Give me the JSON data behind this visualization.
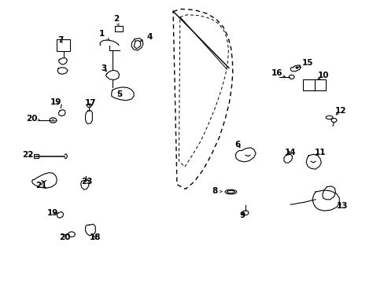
{
  "bg_color": "#ffffff",
  "line_color": "#000000",
  "figsize": [
    4.89,
    3.6
  ],
  "dpi": 100,
  "font_size": 7.5,
  "lw": 0.8,
  "door_outer": {
    "x": [
      0.455,
      0.475,
      0.51,
      0.555,
      0.59,
      0.615,
      0.63,
      0.638,
      0.64,
      0.635,
      0.625,
      0.61,
      0.59,
      0.565,
      0.54,
      0.51,
      0.48,
      0.46,
      0.455
    ],
    "y": [
      0.96,
      0.97,
      0.968,
      0.95,
      0.92,
      0.88,
      0.83,
      0.77,
      0.7,
      0.62,
      0.53,
      0.44,
      0.36,
      0.295,
      0.26,
      0.25,
      0.265,
      0.3,
      0.96
    ]
  },
  "door_inner": {
    "x": [
      0.475,
      0.495,
      0.528,
      0.57,
      0.6,
      0.618,
      0.625,
      0.622,
      0.615,
      0.6,
      0.58,
      0.558,
      0.535,
      0.512,
      0.49,
      0.478,
      0.475
    ],
    "y": [
      0.942,
      0.95,
      0.948,
      0.932,
      0.905,
      0.865,
      0.81,
      0.75,
      0.67,
      0.58,
      0.49,
      0.405,
      0.338,
      0.292,
      0.272,
      0.31,
      0.942
    ]
  },
  "door_solid_top": {
    "x": [
      0.455,
      0.475,
      0.51,
      0.54,
      0.565,
      0.58,
      0.58,
      0.555,
      0.52,
      0.49,
      0.465,
      0.455
    ],
    "y": [
      0.96,
      0.97,
      0.968,
      0.955,
      0.935,
      0.9,
      0.865,
      0.885,
      0.905,
      0.918,
      0.928,
      0.96
    ]
  }
}
